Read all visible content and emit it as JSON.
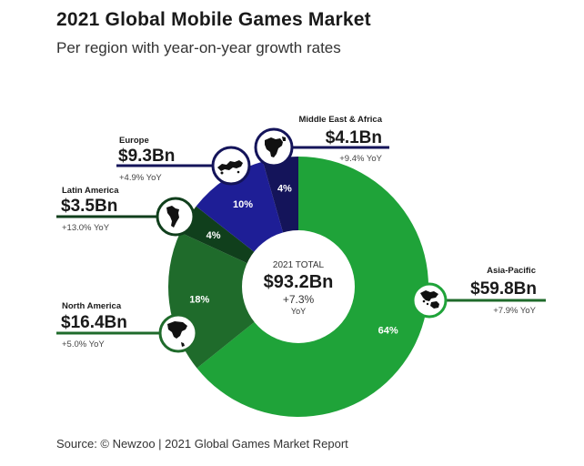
{
  "header": {
    "title": "2021 Global Mobile Games Market",
    "subtitle": "Per region with year-on-year growth rates"
  },
  "source": "Source: © Newzoo | 2021 Global Games Market Report",
  "colors": {
    "asia_pacific": "#1fa339",
    "north_america": "#1f6b2b",
    "latin_america": "#103f1c",
    "europe": "#1e1e96",
    "middle_east_africa": "#14145a",
    "connector_green": "#1f6b2b",
    "connector_navy": "#14145a"
  },
  "chart_data": {
    "type": "pie",
    "title": "2021 Global Mobile Games Market",
    "subtitle": "Per region with year-on-year growth rates",
    "total": {
      "label": "2021 TOTAL",
      "value": "$93.2Bn",
      "growth": "+7.3%",
      "growth_unit": "YoY"
    },
    "slices": [
      {
        "key": "asia_pacific",
        "name": "Asia-Pacific",
        "value_bn": 59.8,
        "value_label": "$59.8Bn",
        "yoy": "+7.9% YoY",
        "percent": 64,
        "percent_label": "64%",
        "icon": "asia-pacific-map-icon"
      },
      {
        "key": "north_america",
        "name": "North America",
        "value_bn": 16.4,
        "value_label": "$16.4Bn",
        "yoy": "+5.0% YoY",
        "percent": 18,
        "percent_label": "18%",
        "icon": "north-america-map-icon"
      },
      {
        "key": "latin_america",
        "name": "Latin America",
        "value_bn": 3.5,
        "value_label": "$3.5Bn",
        "yoy": "+13.0% YoY",
        "percent": 4,
        "percent_label": "4%",
        "icon": "south-america-map-icon"
      },
      {
        "key": "europe",
        "name": "Europe",
        "value_bn": 9.3,
        "value_label": "$9.3Bn",
        "yoy": "+4.9% YoY",
        "percent": 10,
        "percent_label": "10%",
        "icon": "europe-map-icon"
      },
      {
        "key": "middle_east_africa",
        "name": "Middle East & Africa",
        "value_bn": 4.1,
        "value_label": "$4.1Bn",
        "yoy": "+9.4% YoY",
        "percent": 4,
        "percent_label": "4%",
        "icon": "africa-map-icon"
      }
    ]
  }
}
